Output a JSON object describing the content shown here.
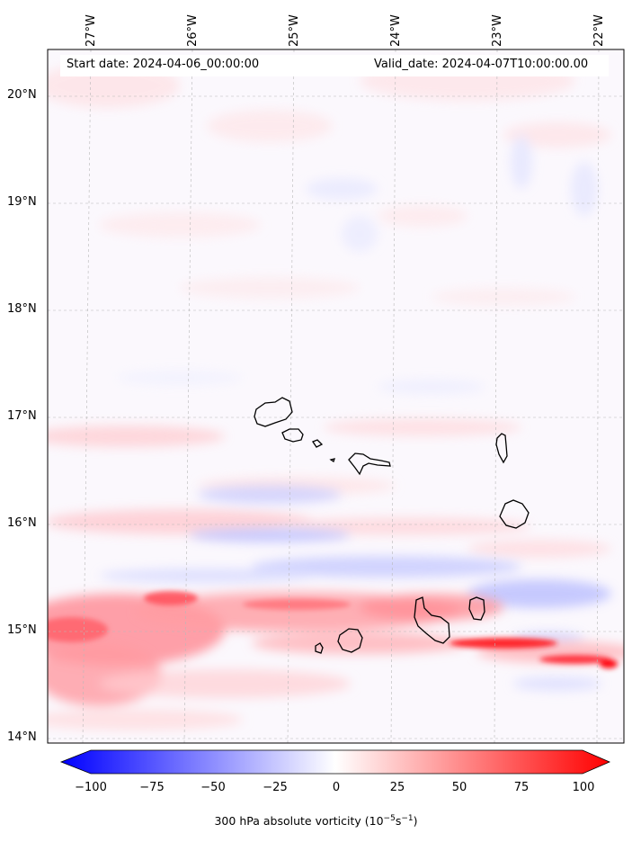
{
  "map": {
    "start_date": "Start date: 2024-04-06_00:00:00",
    "valid_date": "Valid_date: 2024-04-07T10:00:00.00",
    "lon_labels": [
      "27°W",
      "26°W",
      "25°W",
      "24°W",
      "23°W",
      "22°W"
    ],
    "lat_labels": [
      "20°N",
      "19°N",
      "18°N",
      "17°N",
      "16°N",
      "15°N",
      "14°N"
    ],
    "lat_range": [
      13.95,
      20.45
    ],
    "lon_range": [
      -27.4,
      -21.75
    ],
    "field": "300 hPa absolute vorticity",
    "colormap": {
      "low": "#0000ff",
      "mid": "#ffffff",
      "high": "#ff0000"
    },
    "islands": [
      "Santo Antão",
      "São Vicente",
      "Santa Luzia",
      "Branco",
      "São Nicolau",
      "Sal",
      "Boa Vista",
      "Maio",
      "Santiago",
      "Fogo",
      "Brava"
    ]
  },
  "colorbar": {
    "ticks": [
      "−100",
      "−75",
      "−50",
      "−25",
      "0",
      "25",
      "50",
      "75",
      "100"
    ],
    "range": [
      -100,
      100
    ],
    "label_main": "300 hPa absolute vorticity (10",
    "label_sup1": "−5",
    "label_mid": "s",
    "label_sup2": "−1",
    "label_end": ")"
  }
}
